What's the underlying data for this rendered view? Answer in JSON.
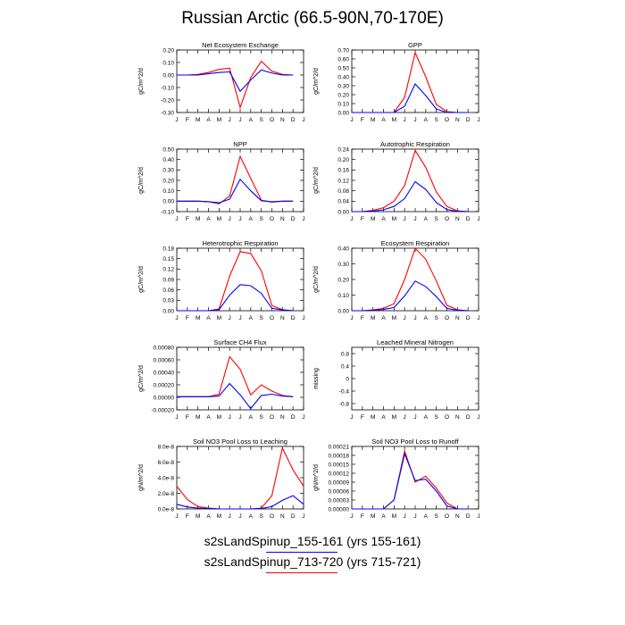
{
  "title": "Russian Arctic (66.5-90N,70-170E)",
  "months": [
    "J",
    "F",
    "M",
    "A",
    "M",
    "J",
    "J",
    "A",
    "S",
    "O",
    "N",
    "D",
    "J"
  ],
  "legend": [
    {
      "label": "s2sLandSpinup_155-161 (yrs 155-161)",
      "color": "#0000ff"
    },
    {
      "label": "s2sLandSpinup_713-720 (yrs 715-721)",
      "color": "#ff0000"
    }
  ],
  "chart_data": [
    {
      "type": "line",
      "title": "Net Ecosystem Exchange",
      "ylabel": "gC/m^2/d",
      "ylim": [
        -0.3,
        0.2
      ],
      "yticks": [
        "-0.30",
        "-0.20",
        "-0.10",
        "0.00",
        "0.10",
        "0.20"
      ],
      "series": [
        {
          "color": "#ff0000",
          "values": [
            0.0,
            0.0,
            0.005,
            0.02,
            0.045,
            0.055,
            -0.26,
            -0.02,
            0.11,
            0.03,
            0.005,
            0.0
          ]
        },
        {
          "color": "#0000ff",
          "values": [
            0.0,
            0.0,
            0.0,
            0.01,
            0.02,
            0.025,
            -0.13,
            -0.04,
            0.04,
            0.015,
            0.0,
            0.0
          ]
        }
      ]
    },
    {
      "type": "line",
      "title": "GPP",
      "ylabel": "gC/m^2/d",
      "ylim": [
        0.0,
        0.7
      ],
      "yticks": [
        "0.00",
        "0.10",
        "0.20",
        "0.30",
        "0.40",
        "0.50",
        "0.60",
        "0.70"
      ],
      "series": [
        {
          "color": "#ff0000",
          "values": [
            0.0,
            0.0,
            0.0,
            0.0,
            0.0,
            0.17,
            0.67,
            0.4,
            0.09,
            0.01,
            0.0,
            0.0
          ]
        },
        {
          "color": "#0000ff",
          "values": [
            0.0,
            0.0,
            0.0,
            0.0,
            0.0,
            0.07,
            0.32,
            0.19,
            0.04,
            0.0,
            0.0,
            0.0
          ]
        }
      ]
    },
    {
      "type": "line",
      "title": "NPP",
      "ylabel": "gC/m^2/d",
      "ylim": [
        -0.1,
        0.5
      ],
      "yticks": [
        "-0.10",
        "0.00",
        "0.10",
        "0.20",
        "0.30",
        "0.40",
        "0.50"
      ],
      "series": [
        {
          "color": "#ff0000",
          "values": [
            0.0,
            0.0,
            0.0,
            -0.005,
            -0.025,
            0.05,
            0.43,
            0.22,
            0.01,
            -0.01,
            0.0,
            0.0
          ]
        },
        {
          "color": "#0000ff",
          "values": [
            0.0,
            0.0,
            0.0,
            -0.005,
            -0.015,
            0.02,
            0.21,
            0.1,
            0.005,
            -0.005,
            0.0,
            0.0
          ]
        }
      ]
    },
    {
      "type": "line",
      "title": "Autotrophic Respiration",
      "ylabel": "gC/m^2/d",
      "ylim": [
        0.0,
        0.24
      ],
      "yticks": [
        "0.00",
        "0.04",
        "0.08",
        "0.12",
        "0.16",
        "0.20",
        "0.24"
      ],
      "series": [
        {
          "color": "#ff0000",
          "values": [
            0.0,
            0.0,
            0.005,
            0.015,
            0.04,
            0.1,
            0.235,
            0.17,
            0.075,
            0.02,
            0.003,
            0.0
          ]
        },
        {
          "color": "#0000ff",
          "values": [
            0.0,
            0.0,
            0.002,
            0.007,
            0.02,
            0.05,
            0.115,
            0.085,
            0.035,
            0.008,
            0.001,
            0.0
          ]
        }
      ]
    },
    {
      "type": "line",
      "title": "Heterotrophic Respiration",
      "ylabel": "gC/m^2/d",
      "ylim": [
        0.0,
        0.18
      ],
      "yticks": [
        "0.00",
        "0.03",
        "0.06",
        "0.09",
        "0.12",
        "0.15",
        "0.18"
      ],
      "series": [
        {
          "color": "#ff0000",
          "values": [
            0.0,
            0.0,
            0.0,
            0.0,
            0.005,
            0.1,
            0.17,
            0.165,
            0.115,
            0.015,
            0.003,
            0.0
          ]
        },
        {
          "color": "#0000ff",
          "values": [
            0.0,
            0.0,
            0.0,
            0.0,
            0.003,
            0.045,
            0.075,
            0.072,
            0.05,
            0.007,
            0.002,
            0.0
          ]
        }
      ]
    },
    {
      "type": "line",
      "title": "Ecosystem Respiration",
      "ylabel": "gC/m^2/d",
      "ylim": [
        0.0,
        0.4
      ],
      "yticks": [
        "0.00",
        "0.10",
        "0.20",
        "0.30",
        "0.40"
      ],
      "series": [
        {
          "color": "#ff0000",
          "values": [
            0.0,
            0.0,
            0.005,
            0.015,
            0.045,
            0.2,
            0.4,
            0.33,
            0.19,
            0.035,
            0.006,
            0.0
          ]
        },
        {
          "color": "#0000ff",
          "values": [
            0.0,
            0.0,
            0.003,
            0.008,
            0.02,
            0.095,
            0.19,
            0.155,
            0.09,
            0.015,
            0.003,
            0.0
          ]
        }
      ]
    },
    {
      "type": "line",
      "title": "Surface CH4 Flux",
      "ylabel": "gC/m^2/d",
      "ylim": [
        -0.0002,
        0.0008
      ],
      "yticks": [
        "-0.00020",
        "0.00000",
        "0.00020",
        "0.00040",
        "0.00060",
        "0.00080"
      ],
      "series": [
        {
          "color": "#ff0000",
          "values": [
            1e-05,
            1e-05,
            1e-05,
            1e-05,
            5e-05,
            0.00065,
            0.00045,
            4e-05,
            0.0002,
            0.0001,
            3e-05,
            1e-05
          ]
        },
        {
          "color": "#0000ff",
          "values": [
            1e-05,
            1e-05,
            1e-05,
            1e-05,
            2e-05,
            0.00022,
            4e-05,
            -0.00018,
            3e-05,
            5e-05,
            2e-05,
            1e-05
          ]
        }
      ]
    },
    {
      "type": "line",
      "title": "Leached Mineral Nitrogen",
      "ylabel": "missing",
      "ylim": [
        -1.0,
        1.0
      ],
      "yticks": [
        "-0.8",
        "-0.4",
        "0",
        "0.4",
        "0.8"
      ],
      "ytick_values": [
        -0.8,
        -0.4,
        0.0,
        0.4,
        0.8
      ],
      "series": []
    },
    {
      "type": "line",
      "title": "Soil NO3 Pool Loss to Leaching",
      "ylabel": "gN/m^2/d",
      "ylim": [
        0.0,
        8e-08
      ],
      "yticks": [
        "0.0e-8",
        "2.0e-8",
        "4.0e-8",
        "6.0e-8",
        "8.0e-8"
      ],
      "series": [
        {
          "color": "#ff0000",
          "values": [
            2.9e-08,
            1.2e-08,
            3e-09,
            1e-09,
            0.0,
            0.0,
            0.0,
            0.0,
            1e-09,
            1.7e-08,
            7.8e-08,
            5e-08,
            2.9e-08
          ]
        },
        {
          "color": "#0000ff",
          "values": [
            6e-09,
            2.5e-09,
            1e-09,
            4e-10,
            0.0,
            0.0,
            0.0,
            0.0,
            5e-10,
            3e-09,
            1.1e-08,
            1.7e-08,
            6e-09
          ]
        }
      ]
    },
    {
      "type": "line",
      "title": "Soil NO3 Pool Loss to Runoff",
      "ylabel": "gN/m^2/d",
      "ylim": [
        0.0,
        0.00021
      ],
      "yticks": [
        "0.00000",
        "0.00003",
        "0.00006",
        "0.00009",
        "0.00012",
        "0.00015",
        "0.00018",
        "0.00021"
      ],
      "series": [
        {
          "color": "#ff0000",
          "values": [
            0.0,
            0.0,
            0.0,
            0.0,
            3e-05,
            0.000195,
            9e-05,
            0.00011,
            7e-05,
            2e-05,
            0.0,
            0.0
          ]
        },
        {
          "color": "#0000ff",
          "values": [
            0.0,
            0.0,
            0.0,
            0.0,
            3e-05,
            0.000185,
            9.5e-05,
            0.0001,
            6e-05,
            1e-05,
            0.0,
            0.0
          ]
        }
      ]
    }
  ]
}
